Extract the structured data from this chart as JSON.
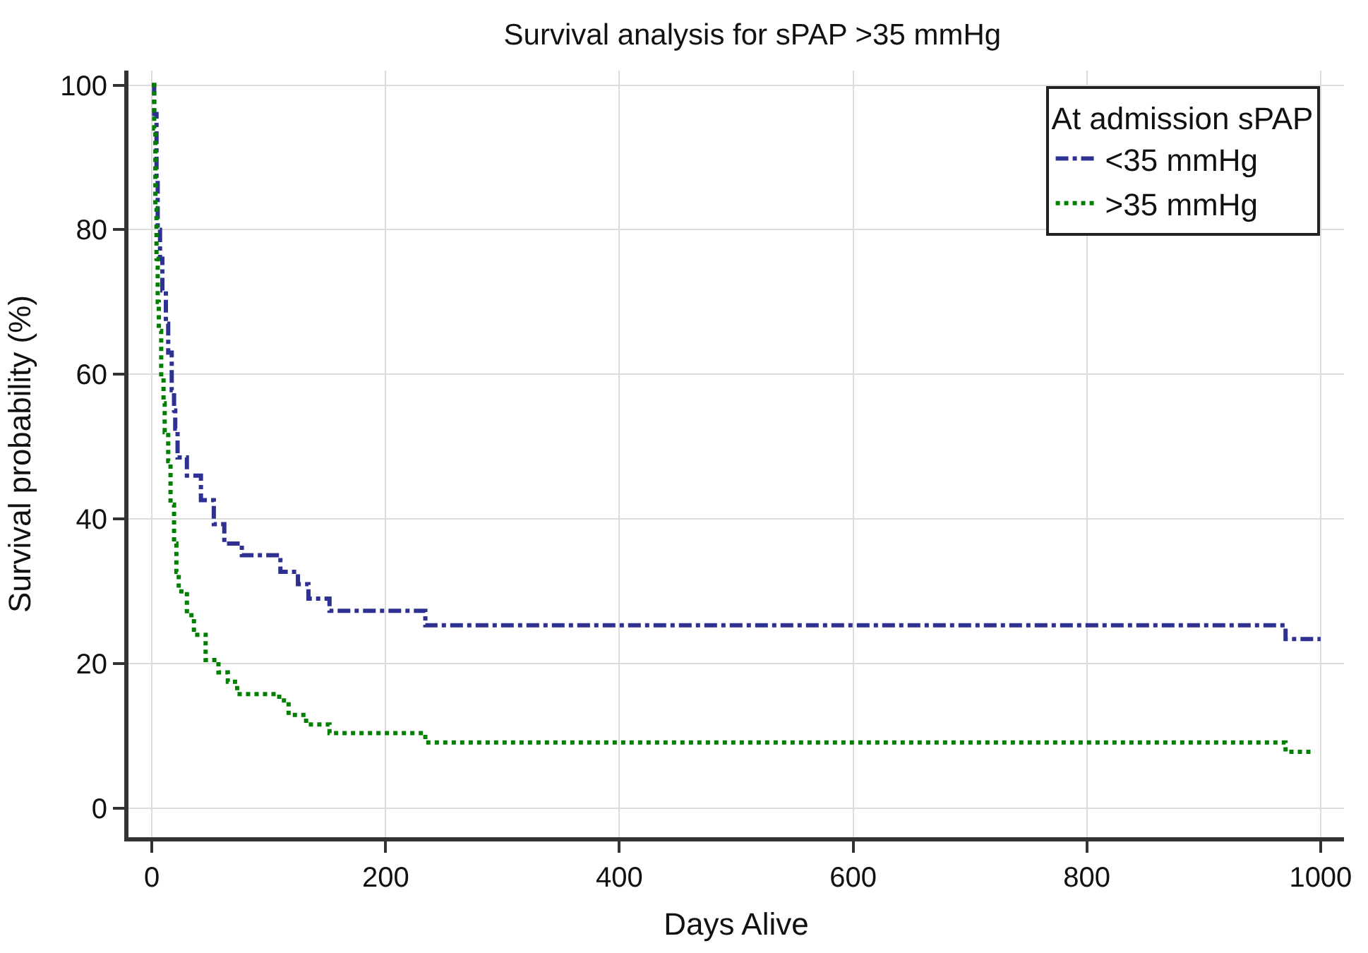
{
  "chart_data": {
    "type": "step",
    "title": "Survival analysis for sPAP >35 mmHg",
    "xlabel": "Days Alive",
    "ylabel": "Survival probability (%)",
    "legend_title": "At admission sPAP",
    "xlim": [
      -20,
      1020
    ],
    "xticks": [
      0,
      200,
      400,
      600,
      800,
      1000
    ],
    "ylim": [
      -4,
      102
    ],
    "yticks": [
      0,
      20,
      40,
      60,
      80,
      100
    ],
    "grid": true,
    "legend": "top right",
    "series": [
      {
        "name": "<35 mmHg",
        "color": "#2e3192",
        "line_style": "dashed",
        "x": [
          0,
          2,
          4,
          5,
          7,
          9,
          12,
          14,
          17,
          19,
          20,
          22,
          30,
          42,
          53,
          62,
          77,
          110,
          125,
          134,
          152,
          234,
          970,
          1000
        ],
        "values": [
          100,
          96,
          86.8,
          80,
          76,
          71.6,
          67,
          63,
          57.8,
          55,
          52.5,
          48.5,
          46,
          42.6,
          39.3,
          36.6,
          35,
          32.7,
          31,
          29,
          27.3,
          25.3,
          23.4,
          23.4
        ]
      },
      {
        "name": ">35 mmHg",
        "color": "#008000",
        "line_style": "dotted",
        "x": [
          0,
          2,
          3,
          4,
          5,
          6,
          8,
          10,
          11,
          14,
          16,
          19,
          21,
          23,
          30,
          36,
          46,
          57,
          65,
          73,
          109,
          117,
          132,
          152,
          234,
          970,
          995
        ],
        "values": [
          100,
          94,
          83,
          76,
          70,
          66,
          60,
          56,
          52,
          48,
          42,
          36.6,
          32.7,
          30,
          26.7,
          24,
          20.5,
          18.8,
          17.5,
          15.8,
          14.9,
          12.9,
          11.6,
          10.4,
          9.1,
          7.8,
          7.8
        ]
      }
    ]
  }
}
